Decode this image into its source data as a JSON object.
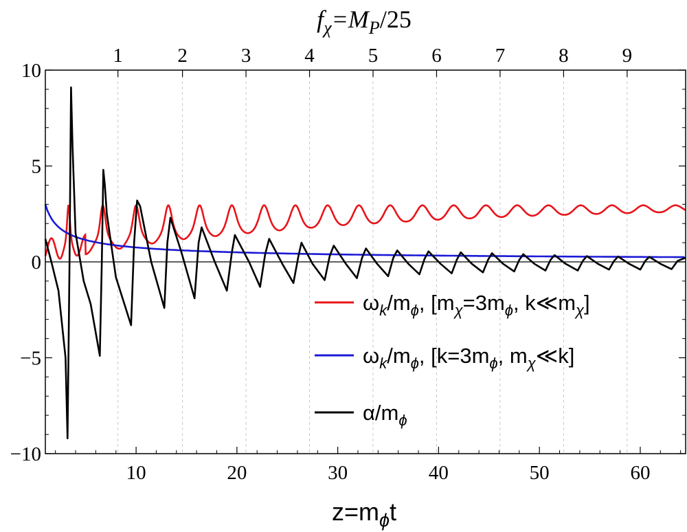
{
  "chart_data": {
    "type": "line",
    "title": "f_χ=M_P/25",
    "title_parts": {
      "main": "f",
      "sub": "χ",
      "rest": "=M",
      "sub2": "P",
      "tail": "/25"
    },
    "xlabel": "z=m_ϕt",
    "xlabel_parts": {
      "pre": "z=m",
      "sub": "ϕ",
      "post": "t"
    },
    "ylabel": "",
    "xlim": [
      1,
      64.5
    ],
    "ylim": [
      -10,
      10
    ],
    "x_ticks": [
      10,
      20,
      30,
      40,
      50,
      60
    ],
    "x_tick_labels": [
      "10",
      "20",
      "30",
      "40",
      "50",
      "60"
    ],
    "y_ticks": [
      -10,
      -5,
      0,
      5,
      10
    ],
    "y_tick_labels": [
      "−10",
      "−5",
      "0",
      "5",
      "10"
    ],
    "top_ticks": [
      1,
      2,
      3,
      4,
      5,
      6,
      7,
      8,
      9
    ],
    "top_tick_labels": [
      "1",
      "2",
      "3",
      "4",
      "5",
      "6",
      "7",
      "8",
      "9"
    ],
    "top_tick_positions_z": [
      8.2,
      14.6,
      20.9,
      27.2,
      33.5,
      39.8,
      46.1,
      52.4,
      58.7
    ],
    "grid": "dashed vertical lines at top-axis ticks",
    "legend_placement": "bottom-right",
    "series": [
      {
        "name": "ω_k/m_ϕ, [m_χ=3m_ϕ, k≪m_χ]",
        "color": "#e8141a",
        "peaks_z": [
          3.3,
          6.7,
          10.0,
          13.2,
          16.3,
          19.5,
          22.7,
          25.8,
          29.0,
          32.1,
          35.2,
          38.4,
          41.5,
          44.7,
          47.8,
          50.9,
          54.1,
          57.2,
          60.3,
          63.5
        ],
        "peak_value": 2.95,
        "troughs": [
          {
            "z": 1.5,
            "value": 0.08
          },
          {
            "z": 5.0,
            "value": 0.4
          },
          {
            "z": 8.5,
            "value": 0.7
          },
          {
            "z": 11.5,
            "value": 0.95
          },
          {
            "z": 15.0,
            "value": 1.2
          },
          {
            "z": 20.0,
            "value": 1.45
          },
          {
            "z": 30.0,
            "value": 1.9
          },
          {
            "z": 40.0,
            "value": 2.2
          },
          {
            "z": 50.0,
            "value": 2.42
          },
          {
            "z": 64.5,
            "value": 2.62
          }
        ]
      },
      {
        "name": "ω_k/m_ϕ, [k=3m_ϕ, m_χ≪k]",
        "color": "#1a1ad6",
        "x": [
          1,
          2,
          3,
          5,
          7,
          10,
          15,
          20,
          30,
          40,
          50,
          64.5
        ],
        "values": [
          3.0,
          2.2,
          1.75,
          1.25,
          0.98,
          0.72,
          0.52,
          0.42,
          0.32,
          0.26,
          0.22,
          0.18
        ]
      },
      {
        "name": "α/m_ϕ",
        "color": "#000000",
        "x": [
          1.0,
          1.6,
          2.3,
          3.0,
          3.2,
          3.4,
          3.55,
          3.7,
          4.0,
          4.8,
          5.5,
          6.4,
          6.6,
          6.75,
          6.9,
          7.1,
          8.0,
          9.5,
          9.8,
          10.1,
          10.4,
          11.5,
          12.8,
          13.1,
          13.4,
          14.5,
          15.8,
          16.2,
          16.5,
          17.8,
          19.0,
          19.5,
          19.8,
          21.2,
          22.3,
          22.8,
          23.2,
          24.5,
          25.6,
          26.1,
          26.4,
          27.5,
          28.7,
          29.2,
          29.6,
          30.8,
          31.9,
          32.4,
          32.8,
          33.9,
          35.0,
          35.5,
          35.9,
          37.0,
          38.1,
          38.6,
          39.0,
          40.2,
          41.3,
          41.8,
          42.2,
          43.3,
          44.4,
          44.9,
          45.3,
          46.4,
          47.5,
          48.0,
          48.4,
          49.5,
          50.6,
          51.1,
          51.5,
          52.6,
          53.8,
          54.3,
          54.7,
          55.8,
          56.9,
          57.4,
          57.8,
          58.9,
          60.0,
          60.5,
          60.9,
          62.0,
          63.1,
          63.7,
          64.5
        ],
        "values": [
          1.2,
          0.0,
          -1.5,
          -5.0,
          -9.2,
          0.0,
          9.1,
          6.0,
          1.5,
          -1.0,
          -2.2,
          -4.9,
          0.0,
          4.8,
          4.0,
          2.5,
          -0.8,
          -3.3,
          1.0,
          3.2,
          2.9,
          0.0,
          -2.4,
          1.0,
          2.3,
          0.5,
          -1.9,
          1.0,
          1.8,
          0.0,
          -1.5,
          0.5,
          1.4,
          0.0,
          -1.3,
          0.4,
          1.2,
          -0.1,
          -1.1,
          0.3,
          1.0,
          -0.1,
          -0.95,
          0.3,
          0.85,
          -0.1,
          -0.85,
          0.2,
          0.7,
          -0.1,
          -0.75,
          0.2,
          0.6,
          -0.1,
          -0.65,
          0.15,
          0.55,
          -0.1,
          -0.6,
          0.1,
          0.5,
          -0.1,
          -0.55,
          0.1,
          0.45,
          -0.1,
          -0.5,
          0.1,
          0.4,
          -0.1,
          -0.45,
          0.1,
          0.35,
          -0.1,
          -0.45,
          0.05,
          0.3,
          -0.1,
          -0.4,
          0.05,
          0.28,
          -0.1,
          -0.4,
          0.05,
          0.26,
          -0.1,
          -0.38,
          0.05,
          0.22
        ]
      }
    ]
  },
  "legend": {
    "entries": [
      {
        "pre": "ω",
        "sub1": "k",
        "mid": "/m",
        "sub2": "ϕ",
        "rest": ", [m",
        "sub3": "χ",
        "rest2": "=3m",
        "sub4": "ϕ",
        "rest3": ", k≪m",
        "sub5": "χ",
        "tail": "]"
      },
      {
        "pre": "ω",
        "sub1": "k",
        "mid": "/m",
        "sub2": "ϕ",
        "rest": ", [k=3m",
        "sub3": "ϕ",
        "rest2": ", m",
        "sub4": "χ",
        "rest3": "≪k]",
        "sub5": "",
        "tail": ""
      },
      {
        "pre": "α",
        "sub1": "",
        "mid": "/m",
        "sub2": "ϕ",
        "rest": "",
        "sub3": "",
        "rest2": "",
        "sub4": "",
        "rest3": "",
        "sub5": "",
        "tail": ""
      }
    ]
  }
}
